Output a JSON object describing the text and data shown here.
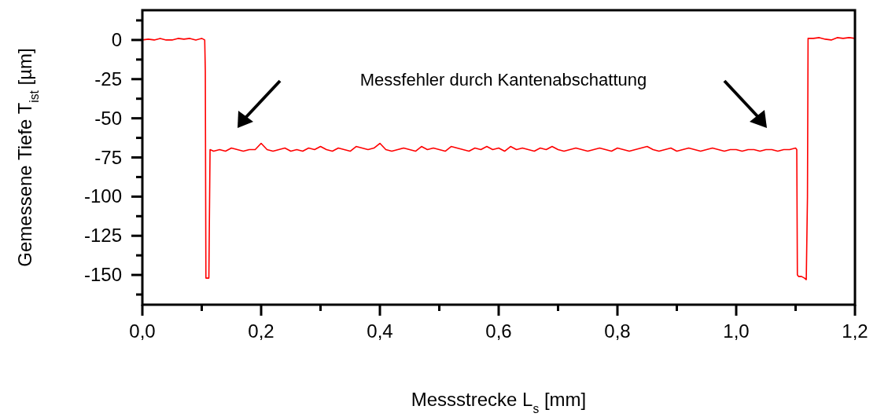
{
  "chart_data": {
    "type": "line",
    "xlabel": "Messstrecke L$_{s}$ [mm]",
    "ylabel": "Gemessene Tiefe T$_{ist}$ [µm]",
    "annotations": [
      "Messfehler durch Kantenabschattung"
    ],
    "xlim": [
      0,
      1.2
    ],
    "xticks": [
      {
        "value": 0,
        "label": "0,0"
      },
      {
        "value": 0.1,
        "label": null
      },
      {
        "value": 0.2,
        "label": "0,2"
      },
      {
        "value": 0.3,
        "label": null
      },
      {
        "value": 0.4,
        "label": "0,4"
      },
      {
        "value": 0.5,
        "label": null
      },
      {
        "value": 0.6,
        "label": "0,6"
      },
      {
        "value": 0.7,
        "label": null
      },
      {
        "value": 0.8,
        "label": "0,8"
      },
      {
        "value": 0.9,
        "label": null
      },
      {
        "value": 1.0,
        "label": "1,0"
      },
      {
        "value": 1.1,
        "label": null
      },
      {
        "value": 1.2,
        "label": "1,2"
      }
    ],
    "ylim": [
      -169,
      19
    ],
    "yticks": [
      {
        "value": 12.5,
        "label": null
      },
      0,
      {
        "value": -12.5,
        "label": null
      },
      -25,
      {
        "value": -37.5,
        "label": null
      },
      -50,
      {
        "value": -62.5,
        "label": null
      },
      -75,
      {
        "value": -87.5,
        "label": null
      },
      -100,
      {
        "value": -112.5,
        "label": null
      },
      -125,
      {
        "value": -137.5,
        "label": null
      },
      -150,
      {
        "value": -162.5,
        "label": null
      }
    ],
    "grid": false,
    "marker": "none",
    "line_style": "solid",
    "series": [
      {
        "color": "#ff0000",
        "x": [
          0,
          0.01,
          0.02,
          0.03,
          0.04,
          0.05,
          0.06,
          0.07,
          0.08,
          0.09,
          0.1,
          0.105,
          0.106,
          0.107,
          0.112,
          0.113,
          0.114,
          0.12,
          0.13,
          0.14,
          0.15,
          0.16,
          0.17,
          0.18,
          0.19,
          0.2,
          0.21,
          0.22,
          0.23,
          0.24,
          0.25,
          0.26,
          0.27,
          0.28,
          0.29,
          0.3,
          0.31,
          0.32,
          0.33,
          0.34,
          0.35,
          0.36,
          0.37,
          0.38,
          0.39,
          0.4,
          0.41,
          0.42,
          0.43,
          0.44,
          0.45,
          0.46,
          0.47,
          0.48,
          0.49,
          0.5,
          0.51,
          0.52,
          0.53,
          0.54,
          0.55,
          0.56,
          0.57,
          0.58,
          0.59,
          0.6,
          0.61,
          0.62,
          0.63,
          0.64,
          0.65,
          0.66,
          0.67,
          0.68,
          0.69,
          0.7,
          0.71,
          0.72,
          0.73,
          0.74,
          0.75,
          0.76,
          0.77,
          0.78,
          0.79,
          0.8,
          0.81,
          0.82,
          0.83,
          0.84,
          0.85,
          0.86,
          0.87,
          0.88,
          0.89,
          0.9,
          0.91,
          0.92,
          0.93,
          0.94,
          0.95,
          0.96,
          0.97,
          0.98,
          0.99,
          1.0,
          1.01,
          1.02,
          1.03,
          1.04,
          1.05,
          1.06,
          1.07,
          1.08,
          1.09,
          1.1,
          1.102,
          1.103,
          1.105,
          1.11,
          1.115,
          1.118,
          1.12,
          1.121,
          1.13,
          1.14,
          1.15,
          1.16,
          1.17,
          1.18,
          1.19,
          1.2
        ],
        "values": [
          0,
          0.5,
          0,
          1,
          0,
          0,
          1,
          0.5,
          1,
          0,
          1,
          0,
          -20,
          -152,
          -152,
          -110,
          -70,
          -71,
          -70,
          -71,
          -69,
          -70,
          -71,
          -70,
          -70,
          -66,
          -70,
          -71,
          -70,
          -69,
          -71,
          -70,
          -71,
          -69,
          -70,
          -68,
          -70,
          -71,
          -69,
          -70,
          -71,
          -68,
          -69,
          -70,
          -69,
          -66,
          -70,
          -71,
          -70,
          -69,
          -70,
          -71,
          -68,
          -70,
          -69,
          -70,
          -71,
          -68,
          -69,
          -70,
          -71,
          -69,
          -70,
          -68,
          -70,
          -69,
          -71,
          -68,
          -70,
          -69,
          -70,
          -71,
          -69,
          -70,
          -68,
          -70,
          -71,
          -70,
          -69,
          -70,
          -71,
          -70,
          -69,
          -70,
          -71,
          -69,
          -70,
          -71,
          -70,
          -69,
          -68,
          -70,
          -71,
          -70,
          -69,
          -71,
          -70,
          -69,
          -70,
          -71,
          -70,
          -69,
          -70,
          -71,
          -70,
          -70,
          -71,
          -70,
          -70,
          -71,
          -70,
          -70,
          -71,
          -70,
          -70,
          -69,
          -70,
          -150,
          -151,
          -151,
          -152,
          -153,
          -100,
          1,
          1,
          1.5,
          0.5,
          0,
          1.5,
          1,
          1.5,
          1
        ]
      }
    ]
  }
}
